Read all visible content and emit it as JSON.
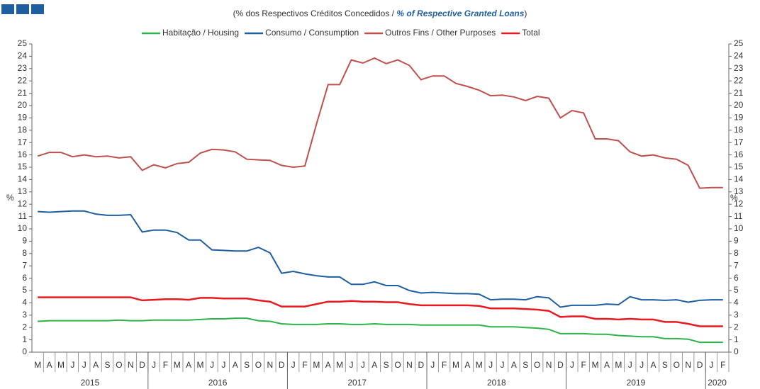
{
  "chart_data": {
    "type": "line",
    "subtitle": [
      "(% dos Respectivos  Créditos Concedidos  / ",
      "% of Respective Granted Loans",
      ")"
    ],
    "y_label": "%",
    "y2_label": "%",
    "categories": [
      "M",
      "A",
      "M",
      "J",
      "J",
      "A",
      "S",
      "O",
      "N",
      "D",
      "J",
      "F",
      "M",
      "A",
      "M",
      "J",
      "J",
      "A",
      "S",
      "O",
      "N",
      "D",
      "J",
      "F",
      "M",
      "A",
      "M",
      "J",
      "J",
      "A",
      "S",
      "O",
      "N",
      "D",
      "J",
      "F",
      "M",
      "A",
      "M",
      "J",
      "J",
      "A",
      "S",
      "O",
      "N",
      "D",
      "J",
      "F",
      "M",
      "A",
      "M",
      "J",
      "J",
      "A",
      "S",
      "O",
      "N",
      "D",
      "J",
      "F"
    ],
    "years": [
      "2015",
      "2016",
      "2017",
      "2018",
      "2019",
      "2020"
    ],
    "ylim": [
      0,
      25
    ],
    "yticks": [
      0,
      1,
      2,
      3,
      4,
      5,
      6,
      7,
      8,
      9,
      10,
      11,
      12,
      13,
      14,
      15,
      16,
      17,
      18,
      19,
      20,
      21,
      22,
      23,
      24,
      25
    ],
    "y2lim": [
      0,
      25
    ],
    "y2ticks": [
      0,
      1,
      2,
      3,
      4,
      5,
      6,
      7,
      8,
      9,
      10,
      11,
      12,
      13,
      14,
      15,
      16,
      17,
      18,
      19,
      20,
      21,
      22,
      23,
      24,
      25
    ],
    "legend": "top",
    "series": [
      {
        "name": "Habitação / Housing",
        "color": "#2db34a",
        "values": [
          2.5,
          2.55,
          2.55,
          2.55,
          2.55,
          2.55,
          2.55,
          2.6,
          2.55,
          2.55,
          2.6,
          2.6,
          2.6,
          2.6,
          2.65,
          2.7,
          2.7,
          2.75,
          2.75,
          2.55,
          2.5,
          2.3,
          2.25,
          2.25,
          2.25,
          2.3,
          2.3,
          2.25,
          2.25,
          2.3,
          2.25,
          2.25,
          2.25,
          2.2,
          2.2,
          2.2,
          2.2,
          2.2,
          2.2,
          2.05,
          2.05,
          2.05,
          2.0,
          1.95,
          1.85,
          1.5,
          1.5,
          1.5,
          1.45,
          1.45,
          1.35,
          1.3,
          1.25,
          1.25,
          1.1,
          1.1,
          1.05,
          0.8,
          0.8,
          0.8
        ]
      },
      {
        "name": "Consumo / Consumption",
        "color": "#1f5fa0",
        "values": [
          11.4,
          11.35,
          11.4,
          11.45,
          11.45,
          11.2,
          11.1,
          11.1,
          11.15,
          9.75,
          9.9,
          9.9,
          9.7,
          9.1,
          9.1,
          8.3,
          8.25,
          8.2,
          8.2,
          8.5,
          8.05,
          6.4,
          6.55,
          6.35,
          6.2,
          6.1,
          6.1,
          5.5,
          5.5,
          5.7,
          5.4,
          5.4,
          5.0,
          4.8,
          4.85,
          4.8,
          4.75,
          4.75,
          4.7,
          4.25,
          4.3,
          4.3,
          4.25,
          4.5,
          4.4,
          3.65,
          3.8,
          3.8,
          3.8,
          3.9,
          3.85,
          4.5,
          4.25,
          4.25,
          4.2,
          4.25,
          4.05,
          4.2,
          4.25,
          4.25
        ]
      },
      {
        "name": "Outros Fins / Other Purposes",
        "color": "#c0504d",
        "values": [
          15.9,
          16.2,
          16.2,
          15.85,
          16.0,
          15.85,
          15.9,
          15.75,
          15.85,
          14.75,
          15.2,
          14.95,
          15.3,
          15.4,
          16.15,
          16.45,
          16.4,
          16.25,
          15.65,
          15.6,
          15.55,
          15.15,
          15.0,
          15.1,
          18.5,
          21.7,
          21.7,
          23.7,
          23.45,
          23.85,
          23.4,
          23.7,
          23.25,
          22.1,
          22.4,
          22.4,
          21.8,
          21.55,
          21.25,
          20.8,
          20.85,
          20.7,
          20.4,
          20.75,
          20.6,
          19.0,
          19.6,
          19.4,
          17.3,
          17.3,
          17.15,
          16.25,
          15.9,
          16.0,
          15.75,
          15.65,
          15.15,
          13.3,
          13.35,
          13.35
        ]
      },
      {
        "name": "Total",
        "color": "#e8191f",
        "values": [
          4.45,
          4.45,
          4.45,
          4.45,
          4.45,
          4.45,
          4.45,
          4.45,
          4.45,
          4.2,
          4.25,
          4.3,
          4.3,
          4.25,
          4.4,
          4.4,
          4.35,
          4.35,
          4.35,
          4.2,
          4.1,
          3.7,
          3.7,
          3.7,
          3.9,
          4.1,
          4.1,
          4.15,
          4.1,
          4.1,
          4.05,
          4.05,
          3.9,
          3.8,
          3.8,
          3.8,
          3.8,
          3.8,
          3.75,
          3.55,
          3.55,
          3.55,
          3.5,
          3.45,
          3.35,
          2.85,
          2.9,
          2.9,
          2.7,
          2.7,
          2.65,
          2.7,
          2.65,
          2.65,
          2.45,
          2.45,
          2.3,
          2.1,
          2.1,
          2.1
        ]
      }
    ]
  }
}
